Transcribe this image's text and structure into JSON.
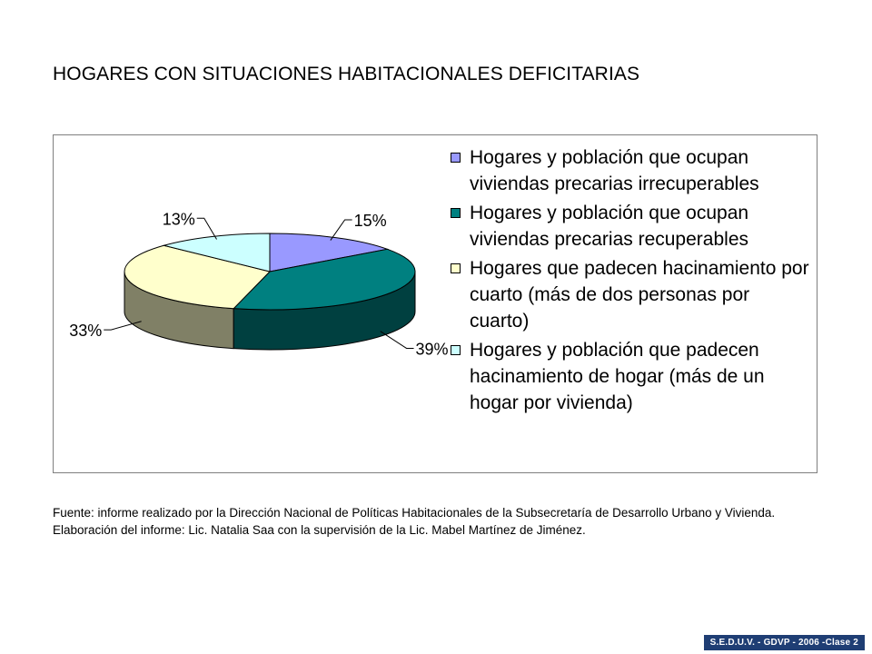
{
  "page": {
    "title": "HOGARES CON SITUACIONES HABITACIONALES DEFICITARIAS",
    "source": "Fuente: informe realizado por la Dirección Nacional de Políticas Habitacionales de la Subsecretaría de Desarrollo Urbano y Vivienda. Elaboración del informe: Lic. Natalia Saa con la supervisión de la Lic. Mabel Martínez de Jiménez.",
    "footer": "S.E.D.U.V. - GDVP - 2006 -Clase 2"
  },
  "chart_data": {
    "type": "pie",
    "style": "3d",
    "legend_position": "right",
    "slices": [
      {
        "label": "Hogares y población que ocupan viviendas precarias irrecuperables",
        "value": 15,
        "value_label": "15%",
        "color": "#9999ff",
        "side_color": "#4d4d80"
      },
      {
        "label": "Hogares y población que ocupan viviendas precarias recuperables",
        "value": 39,
        "value_label": "39%",
        "color": "#008080",
        "side_color": "#004040"
      },
      {
        "label": "Hogares que padecen hacinamiento por cuarto (más de dos personas por cuarto)",
        "value": 33,
        "value_label": "33%",
        "color": "#ffffcc",
        "side_color": "#808066"
      },
      {
        "label": "Hogares y población que padecen hacinamiento de hogar (más de un hogar por vivienda)",
        "value": 13,
        "value_label": "13%",
        "color": "#ccffff",
        "side_color": "#668080"
      }
    ]
  }
}
